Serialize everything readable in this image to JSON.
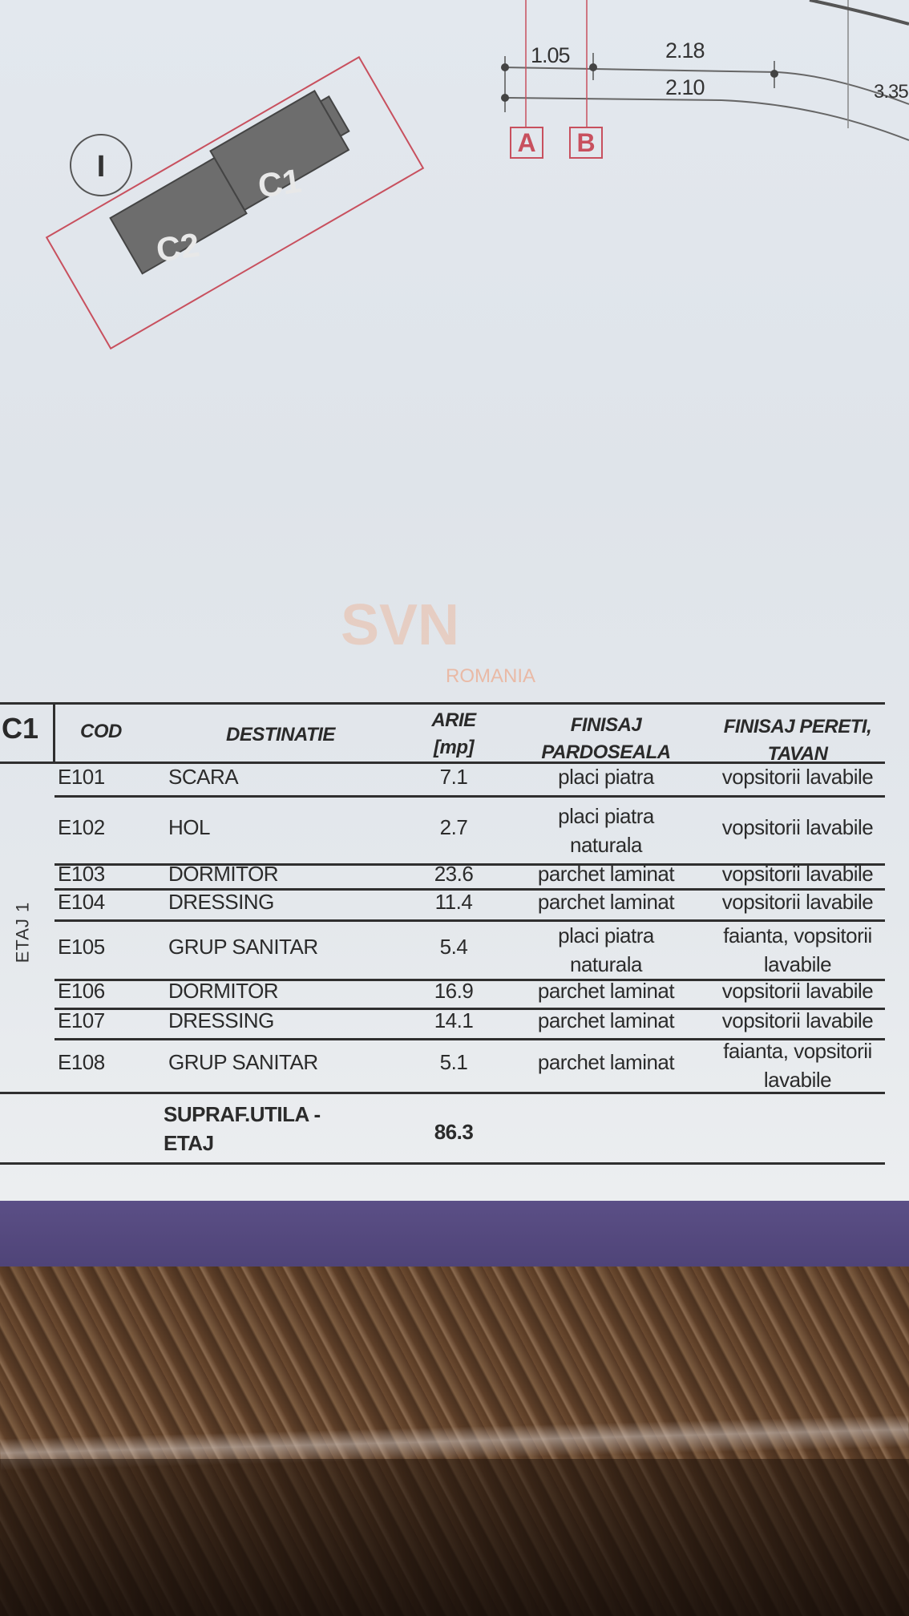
{
  "drawing": {
    "buildings": [
      "C1",
      "C2"
    ],
    "north_mark": "I",
    "dimensions": [
      "1.05",
      "2.18",
      "2.10",
      "3.35"
    ],
    "grid_axes": [
      "A",
      "B"
    ],
    "accent_color": "#c8505e"
  },
  "watermark": {
    "brand": "SVN",
    "country": "ROMANIA"
  },
  "table": {
    "section": "C1",
    "floor_label": "ETAJ 1",
    "headers": {
      "cod": "COD",
      "destinatie": "DESTINATIE",
      "arie": [
        "ARIE",
        "[mp]"
      ],
      "finisaj_pardoseala": [
        "FINISAJ",
        "PARDOSEALA"
      ],
      "finisaj_pereti": [
        "FINISAJ PERETI,",
        "TAVAN"
      ]
    },
    "rows": [
      {
        "cod": "E101",
        "destinatie": "SCARA",
        "arie": "7.1",
        "pardoseala": [
          "placi piatra"
        ],
        "pereti": [
          "vopsitorii lavabile"
        ]
      },
      {
        "cod": "E102",
        "destinatie": "HOL",
        "arie": "2.7",
        "pardoseala": [
          "placi piatra",
          "naturala"
        ],
        "pereti": [
          "vopsitorii lavabile"
        ]
      },
      {
        "cod": "E103",
        "destinatie": "DORMITOR",
        "arie": "23.6",
        "pardoseala": [
          "parchet laminat"
        ],
        "pereti": [
          "vopsitorii lavabile"
        ]
      },
      {
        "cod": "E104",
        "destinatie": "DRESSING",
        "arie": "11.4",
        "pardoseala": [
          "parchet laminat"
        ],
        "pereti": [
          "vopsitorii lavabile"
        ]
      },
      {
        "cod": "E105",
        "destinatie": "GRUP SANITAR",
        "arie": "5.4",
        "pardoseala": [
          "placi piatra",
          "naturala"
        ],
        "pereti": [
          "faianta, vopsitorii",
          "lavabile"
        ]
      },
      {
        "cod": "E106",
        "destinatie": "DORMITOR",
        "arie": "16.9",
        "pardoseala": [
          "parchet laminat"
        ],
        "pereti": [
          "vopsitorii lavabile"
        ]
      },
      {
        "cod": "E107",
        "destinatie": "DRESSING",
        "arie": "14.1",
        "pardoseala": [
          "parchet laminat"
        ],
        "pereti": [
          "vopsitorii lavabile"
        ]
      },
      {
        "cod": "E108",
        "destinatie": "GRUP SANITAR",
        "arie": "5.1",
        "pardoseala": [
          "parchet laminat"
        ],
        "pereti": [
          "faianta, vopsitorii",
          "lavabile"
        ]
      }
    ],
    "total": {
      "label": [
        "SUPRAF.UTILA -",
        "ETAJ"
      ],
      "arie": "86.3"
    }
  }
}
